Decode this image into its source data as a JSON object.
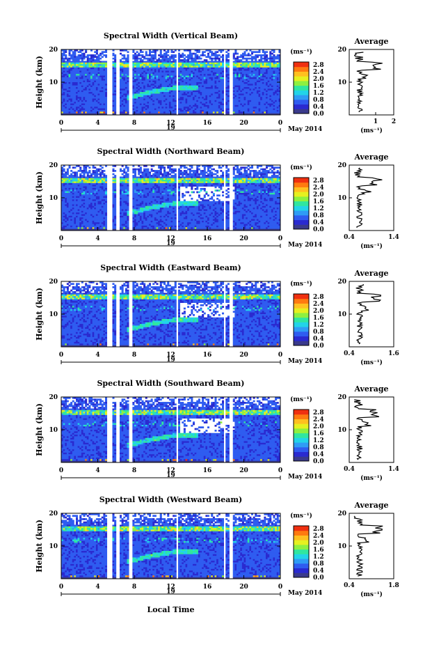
{
  "chart_data": [
    {
      "type": "heatmap",
      "title": "Spectral Width (Vertical Beam)",
      "ylabel": "Height (km)",
      "unit": "(ms⁻¹)",
      "yticks": [
        "20",
        "10"
      ],
      "xticks": [
        "0",
        "4",
        "8",
        "12",
        "16",
        "20",
        "0"
      ],
      "date_label": "19",
      "month_label": "May 2014",
      "colorbar_ticks": [
        "2.8",
        "2.4",
        "2.0",
        "1.6",
        "1.2",
        "0.8",
        "0.4",
        "0.0"
      ],
      "profile": {
        "title": "Average",
        "xlabel": "(ms⁻¹)",
        "xticks": [
          "1",
          "2"
        ],
        "yticks": [
          "20",
          "10"
        ]
      }
    },
    {
      "type": "heatmap",
      "title": "Spectral Width (Northward Beam)",
      "ylabel": "Height (km)",
      "unit": "(ms⁻¹)",
      "yticks": [
        "20",
        "10"
      ],
      "xticks": [
        "0",
        "4",
        "8",
        "12",
        "16",
        "20",
        "0"
      ],
      "date_label": "19",
      "month_label": "May 2014",
      "colorbar_ticks": [
        "2.8",
        "2.4",
        "2.0",
        "1.6",
        "1.2",
        "0.8",
        "0.4",
        "0.0"
      ],
      "profile": {
        "title": "Average",
        "xlabel": "(ms⁻¹)",
        "xticks": [
          "0.4",
          "1.4"
        ],
        "yticks": [
          "20",
          "10"
        ]
      }
    },
    {
      "type": "heatmap",
      "title": "Spectral Width (Eastward Beam)",
      "ylabel": "Height (km)",
      "unit": "(ms⁻¹)",
      "yticks": [
        "20",
        "10"
      ],
      "xticks": [
        "0",
        "4",
        "8",
        "12",
        "16",
        "20",
        "0"
      ],
      "date_label": "19",
      "month_label": "May 2014",
      "colorbar_ticks": [
        "2.8",
        "2.4",
        "2.0",
        "1.6",
        "1.2",
        "0.8",
        "0.4",
        "0.0"
      ],
      "profile": {
        "title": "Average",
        "xlabel": "(ms⁻¹)",
        "xticks": [
          "0.4",
          "1.6"
        ],
        "yticks": [
          "20",
          "10"
        ]
      }
    },
    {
      "type": "heatmap",
      "title": "Spectral Width (Southward Beam)",
      "ylabel": "Height (km)",
      "unit": "(ms⁻¹)",
      "yticks": [
        "20",
        "10"
      ],
      "xticks": [
        "0",
        "4",
        "8",
        "12",
        "16",
        "20",
        "0"
      ],
      "date_label": "19",
      "month_label": "May 2014",
      "colorbar_ticks": [
        "2.8",
        "2.4",
        "2.0",
        "1.6",
        "1.2",
        "0.8",
        "0.4",
        "0.0"
      ],
      "profile": {
        "title": "Average",
        "xlabel": "(ms⁻¹)",
        "xticks": [
          "0.4",
          "1.4"
        ],
        "yticks": [
          "20",
          "10"
        ]
      }
    },
    {
      "type": "heatmap",
      "title": "Spectral Width (Westward Beam)",
      "ylabel": "Height (km)",
      "unit": "(ms⁻¹)",
      "yticks": [
        "20",
        "10"
      ],
      "xticks": [
        "0",
        "4",
        "8",
        "12",
        "16",
        "20",
        "0"
      ],
      "date_label": "19",
      "month_label": "May 2014",
      "colorbar_ticks": [
        "2.8",
        "2.4",
        "2.0",
        "1.6",
        "1.2",
        "0.8",
        "0.4",
        "0.0"
      ],
      "profile": {
        "title": "Average",
        "xlabel": "(ms⁻¹)",
        "xticks": [
          "0.4",
          "1.8"
        ],
        "yticks": [
          "20",
          "10"
        ]
      }
    }
  ],
  "footer": {
    "xlabel": "Local Time"
  },
  "colors": {
    "scale": [
      "#3a3a8c",
      "#2a2ad0",
      "#2f5cf0",
      "#2f9cf5",
      "#22d4e8",
      "#30e6a0",
      "#8ef040",
      "#e6f020",
      "#ffc020",
      "#ff7a10",
      "#f03010"
    ]
  }
}
